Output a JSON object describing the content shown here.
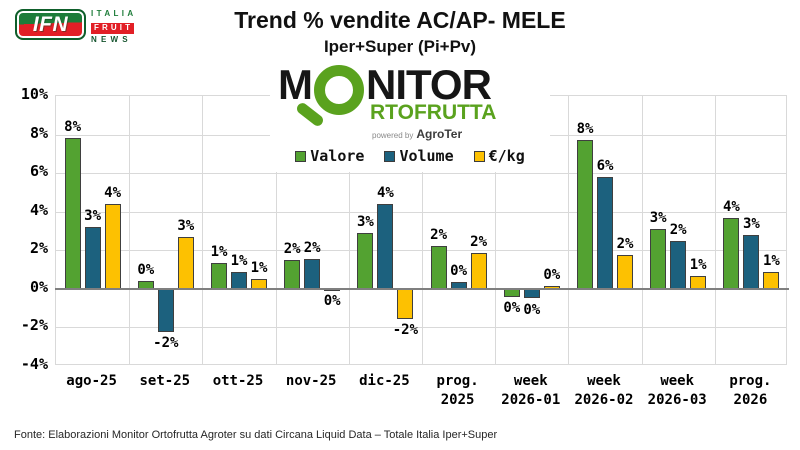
{
  "header": {
    "ifn_logo": {
      "acronym": "IFN",
      "line1": "ITALIA",
      "line2": "FRUIT",
      "line3": "NEWS"
    },
    "title": "Trend % vendite AC/AP- MELE",
    "subtitle": "Iper+Super (Pi+Pv)"
  },
  "monitor_logo": {
    "line1_prefix": "M",
    "line1_suffix": "NITOR",
    "line2": "RTOFRUTTA",
    "powered_by": "powered by",
    "brand": "AgroTer",
    "green": "#5aa21e"
  },
  "footer": {
    "source": "Fonte: Elaborazioni Monitor Ortofrutta Agroter su dati Circana Liquid Data – Totale Italia Iper+Super"
  },
  "colors": {
    "valore": "#53a231",
    "volume": "#1c617e",
    "eur_kg": "#fdc101",
    "bar_outline": "#3f3f3f",
    "gridline": "#d9d9d9",
    "zero_axis": "#7f7f7f",
    "ifn_green": "#1d7c39",
    "ifn_red": "#e21f26"
  },
  "chart_data": {
    "type": "bar",
    "title": "Trend % vendite AC/AP- MELE",
    "subtitle": "Iper+Super (Pi+Pv)",
    "categories": [
      "ago-25",
      "set-25",
      "ott-25",
      "nov-25",
      "dic-25",
      "prog.\n2025",
      "week\n2026-01",
      "week\n2026-02",
      "week\n2026-03",
      "prog.\n2026"
    ],
    "series": [
      {
        "name": "Valore",
        "color": "#53a231",
        "values": [
          7.8,
          0.4,
          1.35,
          1.5,
          2.9,
          2.2,
          -0.4,
          7.7,
          3.1,
          3.7
        ],
        "labels": [
          "8%",
          "0%",
          "1%",
          "2%",
          "3%",
          "2%",
          "0%",
          "8%",
          "3%",
          "4%"
        ]
      },
      {
        "name": "Volume",
        "color": "#1c617e",
        "values": [
          3.2,
          -2.25,
          0.85,
          1.55,
          4.4,
          0.35,
          -0.5,
          5.8,
          2.5,
          2.8
        ],
        "labels": [
          "3%",
          "-2%",
          "1%",
          "2%",
          "4%",
          "0%",
          "0%",
          "6%",
          "2%",
          "3%"
        ]
      },
      {
        "name": "€/kg",
        "color": "#fdc101",
        "values": [
          4.4,
          2.7,
          0.5,
          -0.07,
          -1.55,
          1.85,
          0.15,
          1.75,
          0.65,
          0.9
        ],
        "labels": [
          "4%",
          "3%",
          "1%",
          "0%",
          "-2%",
          "2%",
          "0%",
          "2%",
          "1%",
          "1%"
        ]
      }
    ],
    "ylim": [
      -4,
      10
    ],
    "ytick_step": 2,
    "yticks": [
      "10%",
      "8%",
      "6%",
      "4%",
      "2%",
      "0%",
      "-2%",
      "-4%"
    ],
    "grid": true,
    "legend_position": "top-center",
    "unit": "%"
  }
}
